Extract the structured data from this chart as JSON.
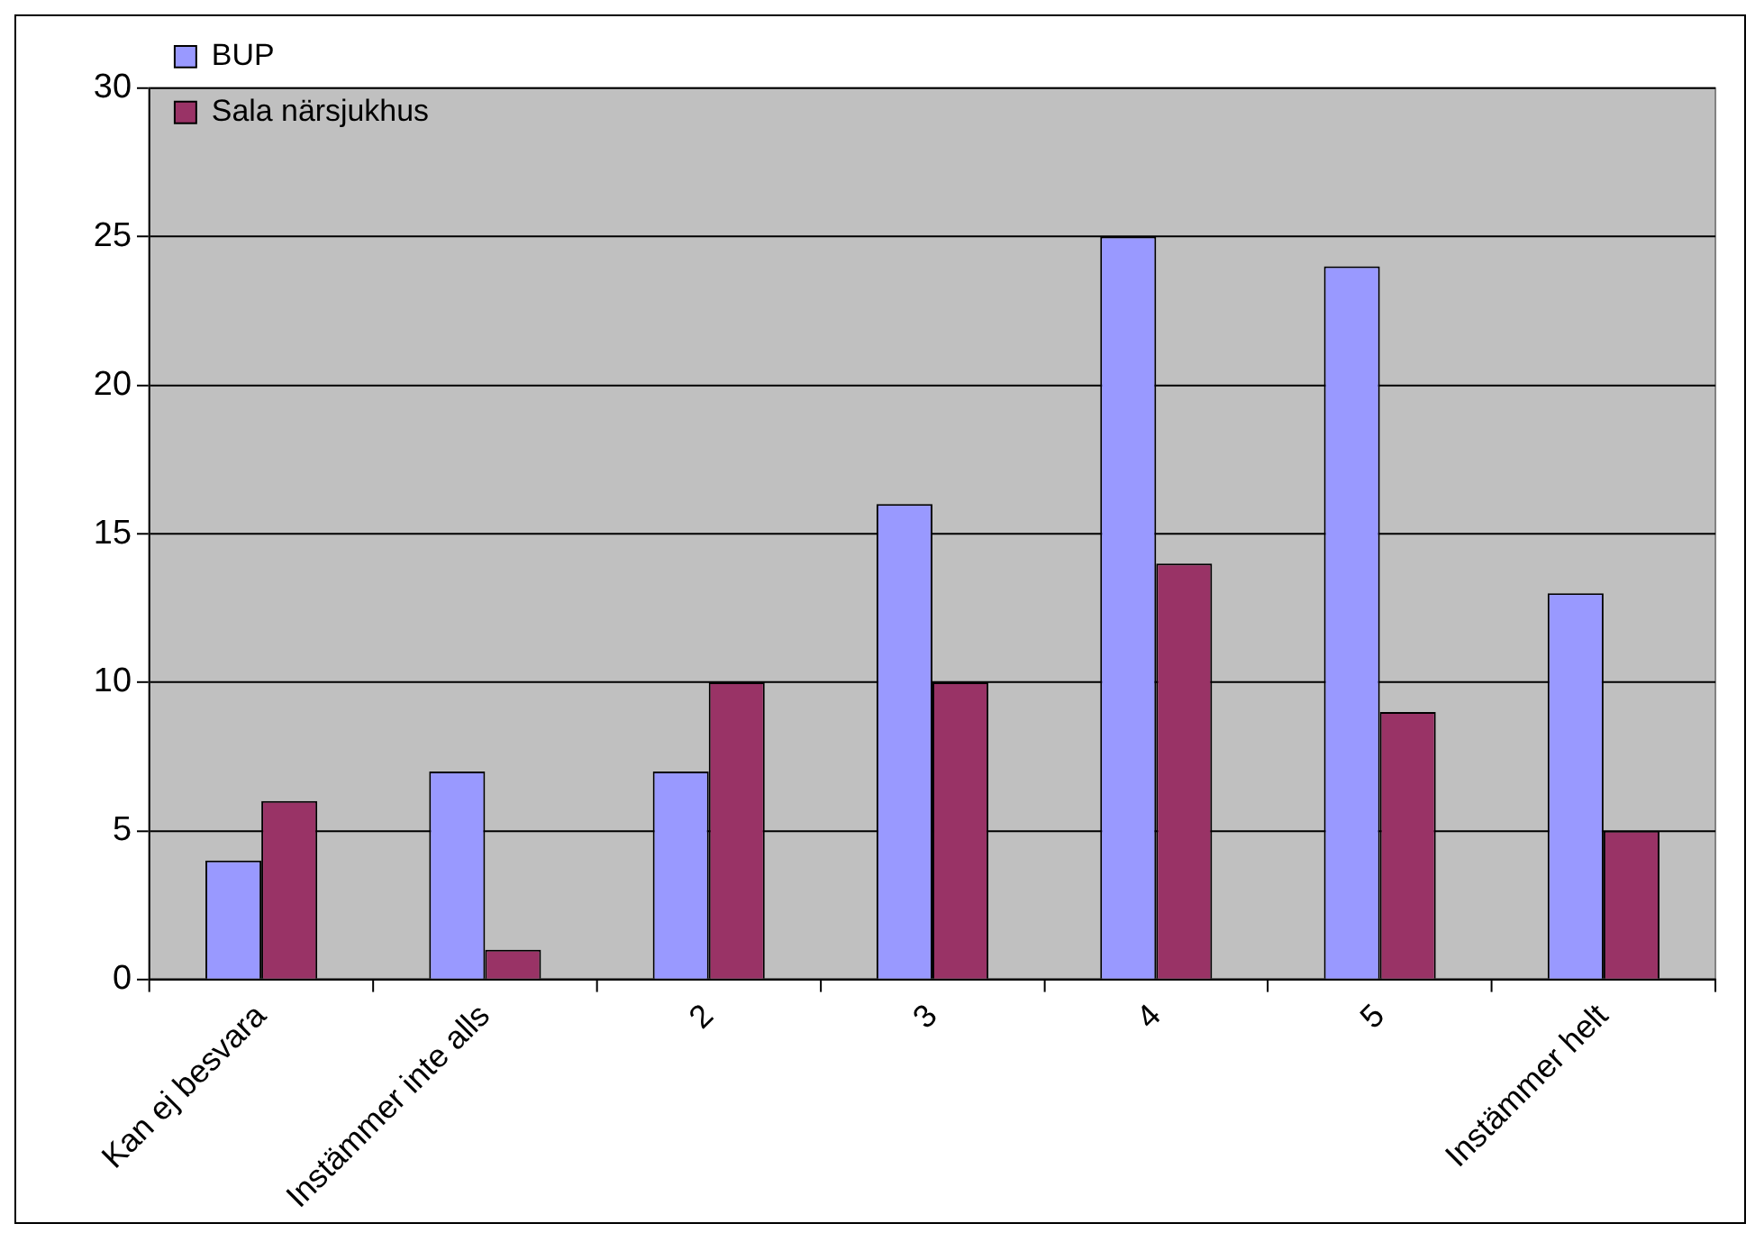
{
  "chart_data": {
    "type": "bar",
    "categories": [
      "Kan ej besvara",
      "Instämmer inte alls",
      "2",
      "3",
      "4",
      "5",
      "Instämmer helt"
    ],
    "series": [
      {
        "name": "BUP",
        "color": "#9999ff",
        "values": [
          4,
          7,
          7,
          16,
          25,
          24,
          13
        ]
      },
      {
        "name": "Sala närsjukhus",
        "color": "#993366",
        "values": [
          6,
          1,
          10,
          10,
          14,
          9,
          5
        ]
      }
    ],
    "ylim": [
      0,
      30
    ],
    "yticks": [
      0,
      5,
      10,
      15,
      20,
      25,
      30
    ],
    "grid": "y",
    "legend": "top left"
  }
}
